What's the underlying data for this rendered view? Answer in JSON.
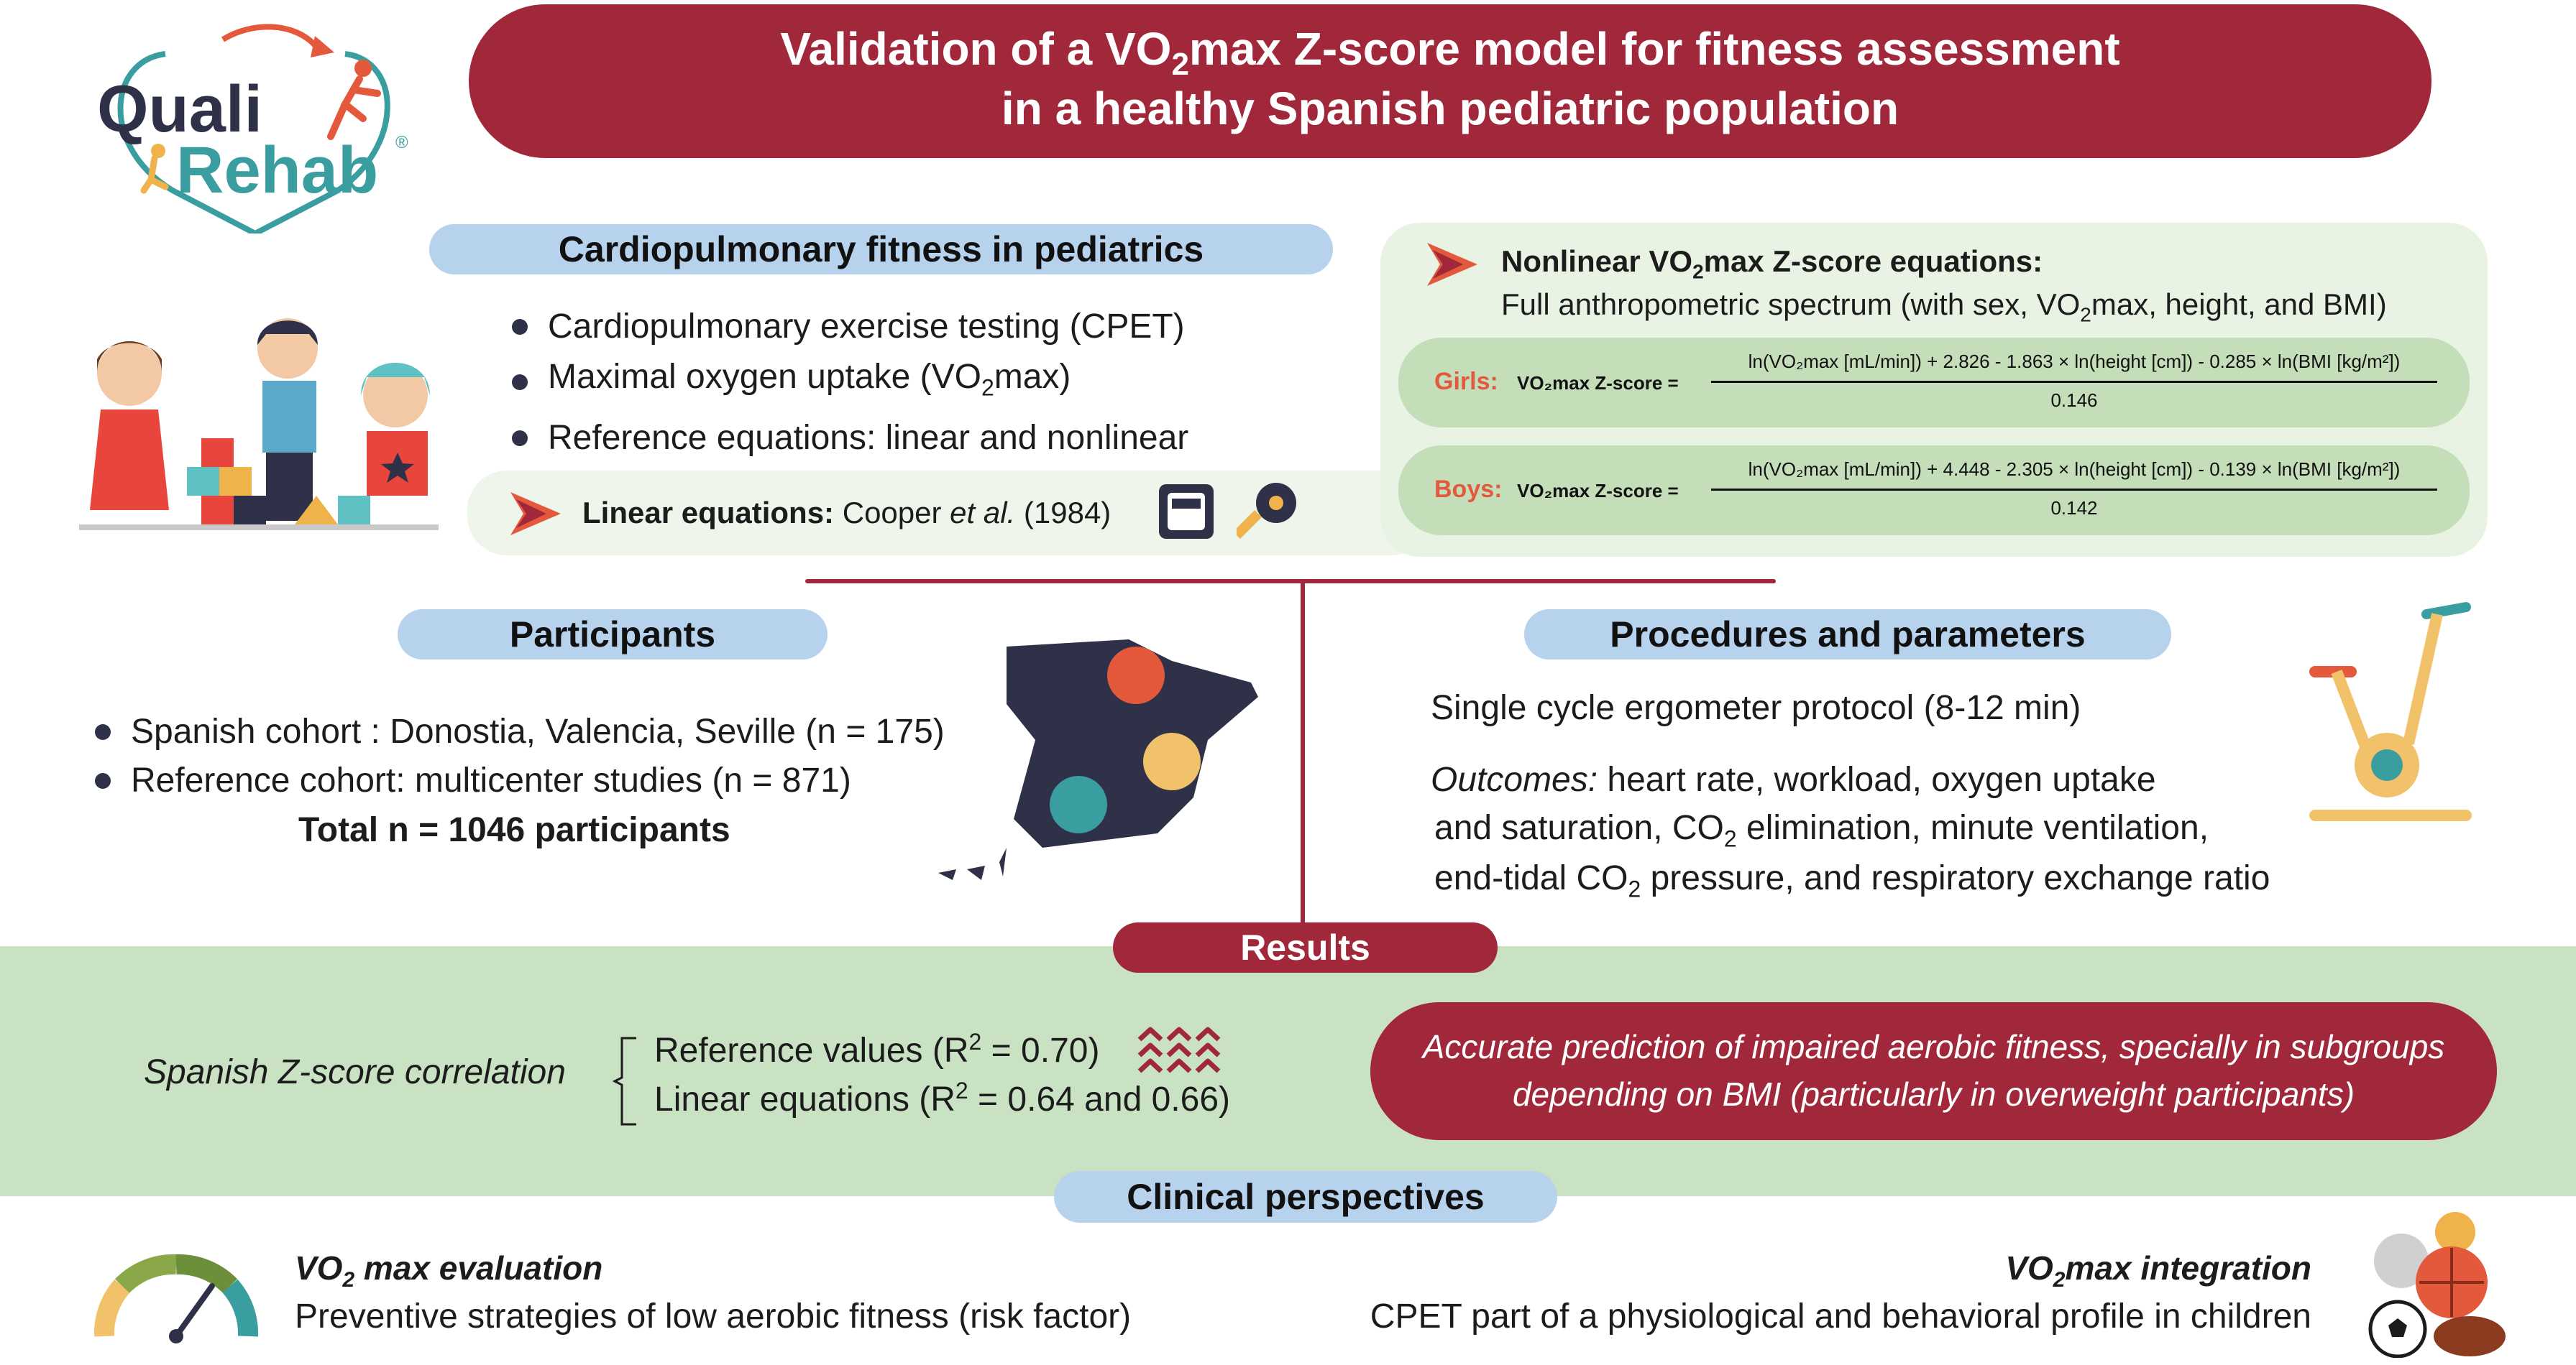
{
  "logo": {
    "brand_top": "Quali",
    "brand_bottom": "Rehab",
    "registered": "®"
  },
  "title": {
    "line1_pre": "Validation of a VO",
    "line1_sub": "2",
    "line1_post": "max Z-score model for fitness assessment",
    "line2": "in a healthy Spanish pediatric population"
  },
  "cardio": {
    "heading": "Cardiopulmonary fitness in pediatrics",
    "bullets": [
      "Cardiopulmonary exercise  testing (CPET)",
      "Maximal  oxygen  uptake (VO",
      "Reference equations: linear and nonlinear"
    ],
    "bullet2_sub": "2",
    "bullet2_post": "max)",
    "linear_label": "Linear equations:",
    "linear_ref_pre": " Cooper ",
    "linear_ref_italic": "et al.",
    "linear_ref_post": " (1984)"
  },
  "nonlinear": {
    "heading_pre": "Nonlinear VO",
    "heading_sub": "2",
    "heading_post": "max Z-score equations:",
    "desc_pre": "Full anthropometric spectrum (with sex, VO",
    "desc_sub": "2",
    "desc_post": "max, height, and BMI)",
    "girls": {
      "label": "Girls:",
      "lhs": "VO₂max Z-score =",
      "numerator": "ln(VO₂max [mL/min]) + 2.826 - 1.863 × ln(height [cm]) - 0.285 × ln(BMI [kg/m²])",
      "denominator": "0.146"
    },
    "boys": {
      "label": "Boys:",
      "lhs": "VO₂max Z-score =",
      "numerator": "ln(VO₂max [mL/min]) + 4.448 - 2.305 × ln(height [cm]) - 0.139 × ln(BMI [kg/m²])",
      "denominator": "0.142"
    }
  },
  "participants": {
    "heading": "Participants",
    "bullets": [
      "Spanish cohort : Donostia, Valencia, Seville (n = 175)",
      "Reference  cohort: multicenter studies (n = 871)"
    ],
    "total": "Total n = 1046 participants"
  },
  "procedures": {
    "heading": "Procedures and parameters",
    "protocol": "Single cycle ergometer protocol (8-12 min)",
    "outcomes_italic": "Outcomes:",
    "outcomes_line1": " heart rate, workload, oxygen uptake",
    "outcomes_line2_pre": "and saturation, CO",
    "outcomes_line2_sub": "2",
    "outcomes_line2_post": " elimination, minute ventilation,",
    "outcomes_line3_pre": "end-tidal CO",
    "outcomes_line3_sub": "2",
    "outcomes_line3_post": " pressure, and respiratory exchange ratio"
  },
  "results": {
    "heading": "Results",
    "correlation_label": "Spanish Z-score correlation",
    "line1_pre": "Reference values (R",
    "line1_sup": "2",
    "line1_post": " = 0.70)",
    "line2_pre": "Linear equations  (R",
    "line2_sup": "2",
    "line2_post": " = 0.64 and 0.66)",
    "conclusion_line1": "Accurate prediction of impaired aerobic fitness, specially in subgroups",
    "conclusion_line2": "depending on BMI (particularly in overweight participants)"
  },
  "clinical": {
    "heading": "Clinical perspectives",
    "left_title_pre": "VO",
    "left_title_sub": "2",
    "left_title_post": " max evaluation",
    "left_text": "Preventive strategies of low aerobic fitness (risk factor)",
    "right_title_pre": "VO",
    "right_title_sub": "2",
    "right_title_post": "max integration",
    "right_text": "CPET part of a physiological and behavioral profile in children"
  },
  "colors": {
    "primary_red": "#a0283a",
    "pill_blue": "#b7d2ec",
    "green_band": "#c8e2c3",
    "teal": "#3a9ea0",
    "navy": "#2e3148"
  }
}
